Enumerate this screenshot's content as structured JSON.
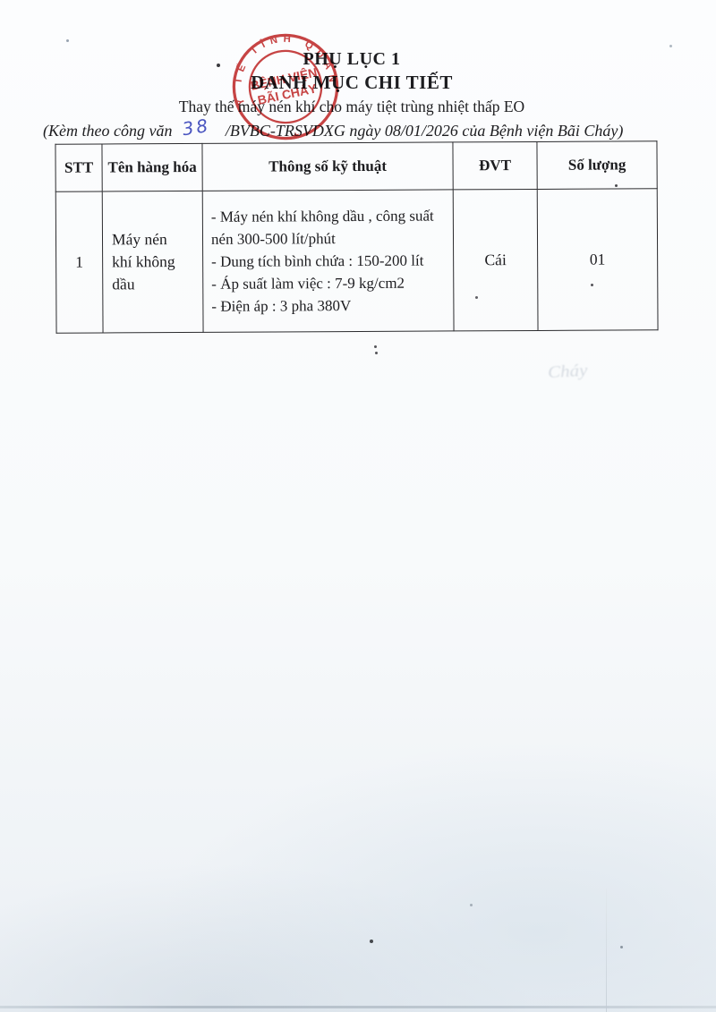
{
  "document": {
    "appendix_title": "PHỤ LỤC 1",
    "list_title": "DANH MỤC CHI TIẾT",
    "subtitle": "Thay thế máy nén khí cho máy tiệt trùng nhiệt thấp EO",
    "reference": {
      "prefix": "(Kèm theo công văn",
      "number_handwritten": "38",
      "suffix": "/BVBC-TRSVDXG ngày 08/01/2026 của Bệnh viện Bãi Cháy)"
    }
  },
  "stamp": {
    "ring_text": "Y TẾ   TỈNH   QUẢNG NINH",
    "center_line1": "BỆNH VIỆN",
    "center_line2": "BÃI CHÁY",
    "star": "★",
    "color": "#c53434"
  },
  "table": {
    "headers": [
      "STT",
      "Tên hàng hóa",
      "Thông số kỹ thuật",
      "ĐVT",
      "Số lượng"
    ],
    "rows": [
      {
        "stt": "1",
        "ten_hang_hoa": "Máy nén khí không dầu",
        "thong_so": [
          "- Máy nén khí không dầu , công suất nén 300-500 lít/phút",
          "- Dung tích bình chứa : 150-200 lít",
          "- Áp suất làm việc : 7-9 kg/cm2",
          "- Điện  áp : 3 pha 380V"
        ],
        "dvt": "Cái",
        "so_luong": "01"
      }
    ]
  },
  "artifacts": {
    "ghost_text": "Cháy"
  },
  "colors": {
    "ink": "#1d1d20",
    "stamp_red": "#c53434",
    "pen_blue": "#4a55c0",
    "paper": "#f7f9fb"
  }
}
